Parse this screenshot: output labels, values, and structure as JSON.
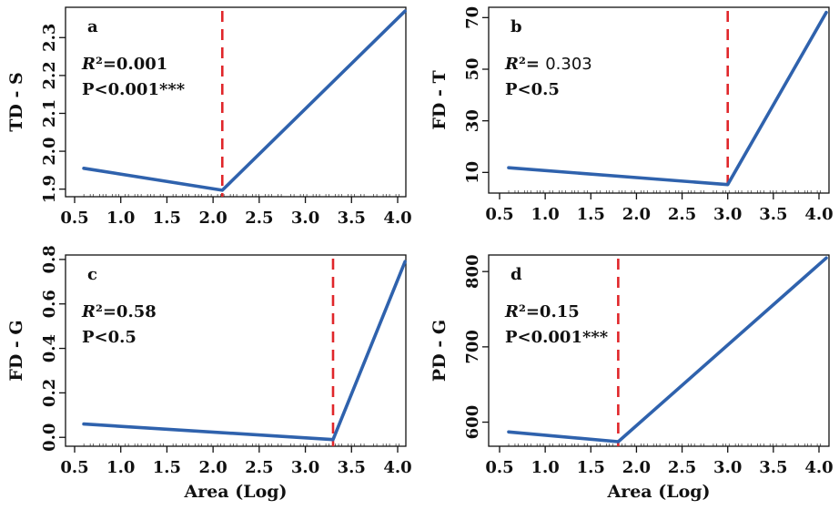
{
  "colors": {
    "line": "#2f62ad",
    "threshold": "#e0262a",
    "axis": "#111111"
  },
  "chart_data": [
    {
      "type": "line",
      "panel": "a",
      "ylabel": "TD - S",
      "xlabel": "",
      "xlim": [
        0.5,
        4.15
      ],
      "ylim": [
        1.88,
        2.38
      ],
      "xticks": [
        "0.5",
        "1.0",
        "1.5",
        "2.0",
        "2.5",
        "3.0",
        "3.5",
        "4.0"
      ],
      "yticks": [
        "1.9",
        "2.0",
        "2.1",
        "2.2",
        "2.3"
      ],
      "series": [
        {
          "x": [
            0.6,
            2.1,
            4.08
          ],
          "y": [
            1.955,
            1.897,
            2.37
          ]
        }
      ],
      "threshold_x": 2.1,
      "stats": [
        {
          "label": "R²=0.001"
        },
        {
          "label": "P<0.001***"
        }
      ]
    },
    {
      "type": "line",
      "panel": "b",
      "ylabel": "FD - T",
      "xlabel": "",
      "xlim": [
        0.5,
        4.15
      ],
      "ylim": [
        2,
        74
      ],
      "xticks": [
        "0.5",
        "1.0",
        "1.5",
        "2.0",
        "2.5",
        "3.0",
        "3.5",
        "4.0"
      ],
      "yticks": [
        "10",
        "30",
        "50",
        "70"
      ],
      "series": [
        {
          "x": [
            0.6,
            3.0,
            4.08
          ],
          "y": [
            11.8,
            5.3,
            72
          ]
        }
      ],
      "threshold_x": 3.0,
      "stats": [
        {
          "label": "R²= ",
          "value": "0.303"
        },
        {
          "label": "P<0.5"
        }
      ]
    },
    {
      "type": "line",
      "panel": "c",
      "ylabel": "FD - G",
      "xlabel": "Area (Log)",
      "xlim": [
        0.5,
        4.15
      ],
      "ylim": [
        -0.04,
        0.82
      ],
      "xticks": [
        "0.5",
        "1.0",
        "1.5",
        "2.0",
        "2.5",
        "3.0",
        "3.5",
        "4.0"
      ],
      "yticks": [
        "0.0",
        "0.2",
        "0.4",
        "0.6",
        "0.8"
      ],
      "series": [
        {
          "x": [
            0.6,
            3.3,
            4.08
          ],
          "y": [
            0.06,
            -0.01,
            0.79
          ]
        }
      ],
      "threshold_x": 3.3,
      "stats": [
        {
          "label": "R²=0.58"
        },
        {
          "label": "P<0.5"
        }
      ]
    },
    {
      "type": "line",
      "panel": "d",
      "ylabel": "PD - G",
      "xlabel": "Area (Log)",
      "xlim": [
        0.5,
        4.15
      ],
      "ylim": [
        568,
        822
      ],
      "xticks": [
        "0.5",
        "1.0",
        "1.5",
        "2.0",
        "2.5",
        "3.0",
        "3.5",
        "4.0"
      ],
      "yticks": [
        "600",
        "700",
        "800"
      ],
      "series": [
        {
          "x": [
            0.6,
            1.8,
            4.08
          ],
          "y": [
            587,
            574,
            818
          ]
        }
      ],
      "threshold_x": 1.8,
      "stats": [
        {
          "label": "R²=0.15"
        },
        {
          "label": "P<0.001***"
        }
      ]
    }
  ]
}
